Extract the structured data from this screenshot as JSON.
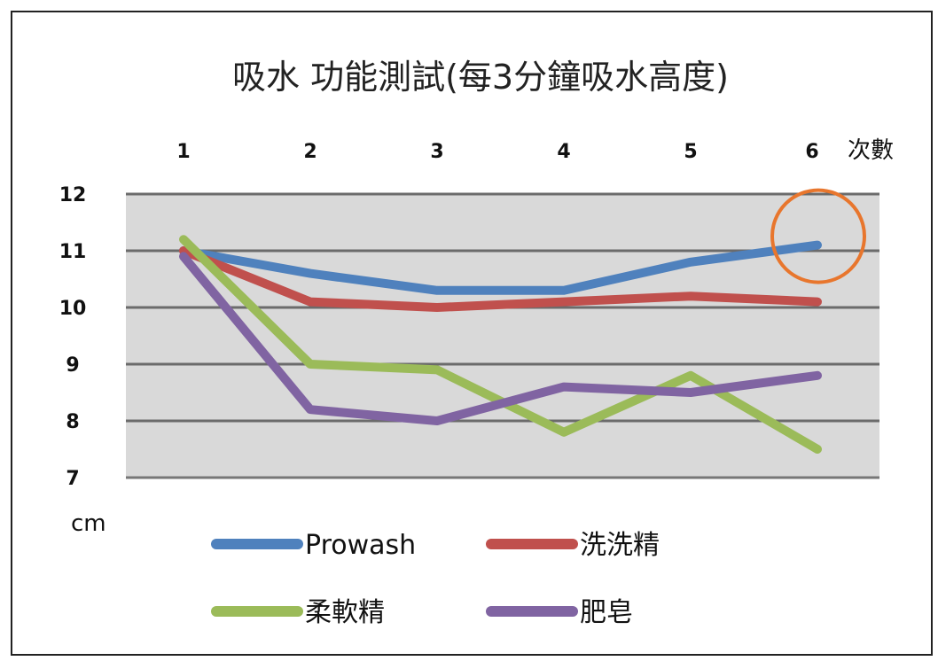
{
  "chart_data": {
    "type": "line",
    "title": "吸水 功能測試(每3分鐘吸水高度)",
    "xlabel": "次數",
    "ylabel": "cm",
    "x": [
      1,
      2,
      3,
      4,
      5,
      6
    ],
    "ylim": [
      7,
      12
    ],
    "yticks": [
      12,
      11,
      10,
      9,
      8,
      7
    ],
    "grid": true,
    "legend_position": "bottom",
    "series": [
      {
        "name": "Prowash",
        "color": "#4f81bd",
        "values": [
          11.0,
          10.6,
          10.3,
          10.3,
          10.8,
          11.1
        ]
      },
      {
        "name": "洗洗精",
        "color": "#c0504d",
        "values": [
          11.0,
          10.1,
          10.0,
          10.1,
          10.2,
          10.1
        ]
      },
      {
        "name": "柔軟精",
        "color": "#9bbb59",
        "values": [
          11.2,
          9.0,
          8.9,
          7.8,
          8.8,
          7.5
        ]
      },
      {
        "name": "肥皂",
        "color": "#8064a2",
        "values": [
          10.9,
          8.2,
          8.0,
          8.6,
          8.5,
          8.8
        ]
      }
    ],
    "annotation": {
      "type": "circle",
      "target_series": "Prowash",
      "target_x": 6,
      "color": "#e8762d"
    }
  }
}
